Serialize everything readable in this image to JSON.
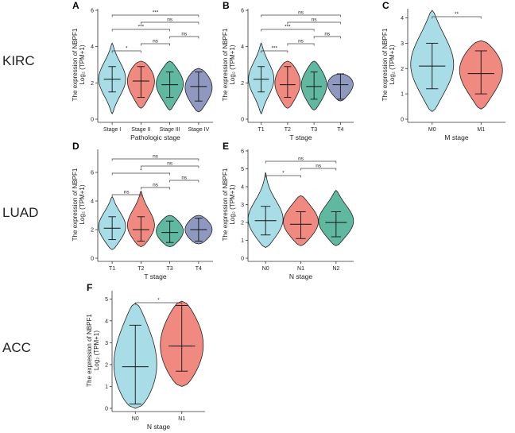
{
  "row_labels": [
    "KIRC",
    "LUAD",
    "ACC"
  ],
  "colors": {
    "level1": "#a8dce6",
    "level2": "#f08a80",
    "level3": "#5fb89f",
    "level4": "#8f98bf",
    "outline": "#222222",
    "bracket": "#444444"
  },
  "chart_data": [
    {
      "type": "violin",
      "panel": "A",
      "cancer": "KIRC",
      "ylabel_line1": "The expression of NBPF1",
      "ylabel_line2": "Log₂ (TPM+1)",
      "xlabel": "Pathologic stage",
      "ylim": [
        0,
        6
      ],
      "yticks": [
        0,
        2,
        4,
        6
      ],
      "categories": [
        "Stage I",
        "Stage II",
        "Stage III",
        "Stage IV"
      ],
      "violins": [
        {
          "min": 0.3,
          "max": 4.2,
          "median": 2.2,
          "q1": 1.5,
          "q3": 2.9,
          "peak": 2.2
        },
        {
          "min": 0.6,
          "max": 3.2,
          "median": 2.1,
          "q1": 1.2,
          "q3": 2.9,
          "peak": 2.3
        },
        {
          "min": 0.5,
          "max": 3.2,
          "median": 1.9,
          "q1": 1.2,
          "q3": 2.6,
          "peak": 2.0
        },
        {
          "min": 0.4,
          "max": 2.8,
          "median": 1.8,
          "q1": 1.0,
          "q3": 2.6,
          "peak": 1.9
        }
      ],
      "comparisons": [
        {
          "from": 0,
          "to": 1,
          "label": "*"
        },
        {
          "from": 0,
          "to": 2,
          "label": "***"
        },
        {
          "from": 0,
          "to": 3,
          "label": "***"
        },
        {
          "from": 1,
          "to": 2,
          "label": "ns"
        },
        {
          "from": 1,
          "to": 3,
          "label": "ns"
        },
        {
          "from": 2,
          "to": 3,
          "label": "ns"
        }
      ]
    },
    {
      "type": "violin",
      "panel": "B",
      "cancer": "KIRC",
      "ylabel_line1": "The expression of NBPF1",
      "ylabel_line2": "Log₂ (TPM+1)",
      "xlabel": "T stage",
      "ylim": [
        0,
        6
      ],
      "yticks": [
        0,
        2,
        4,
        6
      ],
      "categories": [
        "T1",
        "T2",
        "T3",
        "T4"
      ],
      "violins": [
        {
          "min": 0.3,
          "max": 4.2,
          "median": 2.2,
          "q1": 1.5,
          "q3": 2.9,
          "peak": 2.2
        },
        {
          "min": 0.6,
          "max": 3.2,
          "median": 1.9,
          "q1": 1.2,
          "q3": 2.9,
          "peak": 2.1
        },
        {
          "min": 0.5,
          "max": 3.2,
          "median": 1.8,
          "q1": 1.1,
          "q3": 2.6,
          "peak": 1.9
        },
        {
          "min": 1.0,
          "max": 2.5,
          "median": 1.9,
          "q1": 1.1,
          "q3": 2.5,
          "peak": 2.3
        }
      ],
      "comparisons": [
        {
          "from": 0,
          "to": 1,
          "label": "***"
        },
        {
          "from": 0,
          "to": 2,
          "label": "***"
        },
        {
          "from": 0,
          "to": 3,
          "label": "ns"
        },
        {
          "from": 1,
          "to": 2,
          "label": "ns"
        },
        {
          "from": 1,
          "to": 3,
          "label": "ns"
        },
        {
          "from": 2,
          "to": 3,
          "label": "ns"
        }
      ]
    },
    {
      "type": "violin",
      "panel": "C",
      "cancer": "KIRC",
      "ylabel_line1": "The expression of NBPF1",
      "ylabel_line2": "Log₂ (TPM+1)",
      "xlabel": "M stage",
      "ylim": [
        0,
        4.3
      ],
      "yticks": [
        0,
        1,
        2,
        3,
        4
      ],
      "categories": [
        "M0",
        "M1"
      ],
      "violins": [
        {
          "min": 0.3,
          "max": 4.3,
          "median": 2.1,
          "q1": 1.2,
          "q3": 3.0,
          "peak": 2.1
        },
        {
          "min": 0.4,
          "max": 3.1,
          "median": 1.8,
          "q1": 1.0,
          "q3": 2.7,
          "peak": 2.1
        }
      ],
      "comparisons": [
        {
          "from": 0,
          "to": 1,
          "label": "**"
        }
      ]
    },
    {
      "type": "violin",
      "panel": "D",
      "cancer": "LUAD",
      "ylabel_line1": "The expression of NBPF1",
      "ylabel_line2": "Log₂ (TPM+1)",
      "xlabel": "T stage",
      "ylim": [
        0,
        7.5
      ],
      "yticks": [
        0,
        2,
        4,
        6
      ],
      "categories": [
        "T1",
        "T2",
        "T3",
        "T4"
      ],
      "violins": [
        {
          "min": 0.6,
          "max": 4.3,
          "median": 2.1,
          "q1": 1.3,
          "q3": 2.9,
          "peak": 2.1
        },
        {
          "min": 0.8,
          "max": 4.7,
          "median": 2.0,
          "q1": 1.2,
          "q3": 2.9,
          "peak": 2.1
        },
        {
          "min": 0.8,
          "max": 3.0,
          "median": 1.8,
          "q1": 1.1,
          "q3": 2.6,
          "peak": 1.9
        },
        {
          "min": 1.0,
          "max": 3.0,
          "median": 2.0,
          "q1": 1.2,
          "q3": 2.8,
          "peak": 2.0
        }
      ],
      "comparisons": [
        {
          "from": 0,
          "to": 1,
          "label": "ns"
        },
        {
          "from": 0,
          "to": 2,
          "label": "*"
        },
        {
          "from": 0,
          "to": 3,
          "label": "ns"
        },
        {
          "from": 1,
          "to": 2,
          "label": "ns"
        },
        {
          "from": 1,
          "to": 3,
          "label": "ns"
        },
        {
          "from": 2,
          "to": 3,
          "label": "ns"
        }
      ]
    },
    {
      "type": "violin",
      "panel": "E",
      "cancer": "LUAD",
      "ylabel_line1": "The expression of NBPF1",
      "ylabel_line2": "Log₂ (TPM+1)",
      "xlabel": "N stage",
      "ylim": [
        0,
        6
      ],
      "yticks": [
        0,
        1,
        2,
        3,
        4,
        5,
        6
      ],
      "categories": [
        "N0",
        "N1",
        "N2"
      ],
      "violins": [
        {
          "min": 0.6,
          "max": 4.8,
          "median": 2.1,
          "q1": 1.3,
          "q3": 2.9,
          "peak": 2.0
        },
        {
          "min": 0.7,
          "max": 3.5,
          "median": 1.9,
          "q1": 1.1,
          "q3": 2.6,
          "peak": 2.0
        },
        {
          "min": 0.7,
          "max": 3.8,
          "median": 2.0,
          "q1": 1.2,
          "q3": 2.6,
          "peak": 2.0
        }
      ],
      "comparisons": [
        {
          "from": 0,
          "to": 1,
          "label": "*"
        },
        {
          "from": 0,
          "to": 2,
          "label": "ns"
        },
        {
          "from": 1,
          "to": 2,
          "label": "ns"
        }
      ]
    },
    {
      "type": "violin",
      "panel": "F",
      "cancer": "ACC",
      "ylabel_line1": "The expression of NBPF1",
      "ylabel_line2": "Log₂ (TPM+1)",
      "xlabel": "N stage",
      "ylim": [
        0,
        5.3
      ],
      "yticks": [
        0,
        1,
        2,
        3,
        4,
        5
      ],
      "categories": [
        "N0",
        "N1"
      ],
      "violins": [
        {
          "min": 0.0,
          "max": 4.8,
          "median": 1.9,
          "q1": 0.2,
          "q3": 3.8,
          "peak": 1.5
        },
        {
          "min": 1.0,
          "max": 4.9,
          "median": 2.85,
          "q1": 1.7,
          "q3": 4.7,
          "peak": 2.8
        }
      ],
      "comparisons": [
        {
          "from": 0,
          "to": 1,
          "label": "*"
        }
      ]
    }
  ]
}
